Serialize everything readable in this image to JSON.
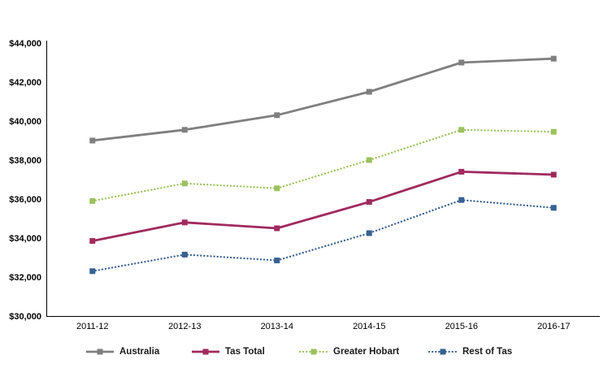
{
  "chart_data": {
    "type": "line",
    "title": "",
    "xlabel": "",
    "ylabel": "",
    "grid": false,
    "legend_position": "bottom",
    "axis_color": "#000000",
    "text_color": "#000000",
    "ylim": [
      30000,
      44000
    ],
    "ytick_step": 2000,
    "ytick_labels": [
      "$30,000",
      "$32,000",
      "$34,000",
      "$36,000",
      "$38,000",
      "$40,000",
      "$42,000",
      "$44,000"
    ],
    "categories": [
      "2011-12",
      "2012-13",
      "2013-14",
      "2014-15",
      "2015-16",
      "2016-17"
    ],
    "series": [
      {
        "name": "Australia",
        "color": "#7F7F7F",
        "line_style": "solid",
        "marker": "square",
        "values": [
          39000,
          39550,
          40300,
          41500,
          43000,
          43200
        ]
      },
      {
        "name": "Tas Total",
        "color": "#A02A5E",
        "line_style": "solid",
        "marker": "square",
        "values": [
          33850,
          34800,
          34500,
          35850,
          37400,
          37250
        ]
      },
      {
        "name": "Greater Hobart",
        "color": "#9CC25D",
        "line_style": "dotted",
        "marker": "square",
        "values": [
          35900,
          36800,
          36550,
          38000,
          39550,
          39450
        ]
      },
      {
        "name": "Rest of Tas",
        "color": "#376192",
        "line_style": "dotted",
        "marker": "square",
        "values": [
          32300,
          33150,
          32850,
          34250,
          35950,
          35550
        ]
      }
    ]
  }
}
